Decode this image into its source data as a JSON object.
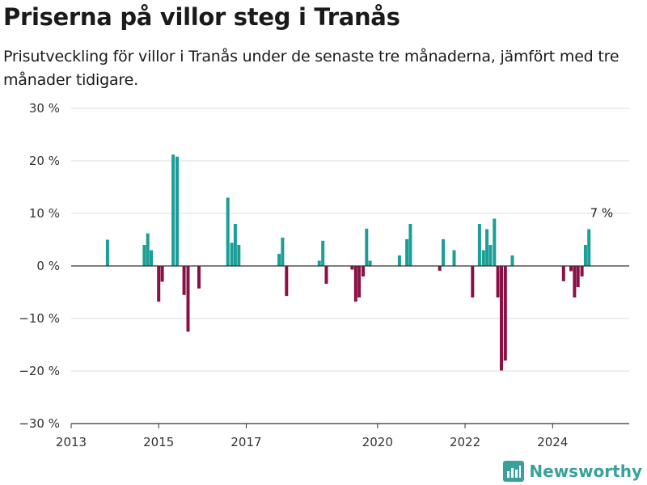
{
  "header": {
    "title": "Priserna på villor steg i Tranås",
    "subtitle": "Prisutveckling för villor i Tranås under de senaste tre månaderna, jämfört med tre månader tidigare."
  },
  "brand": {
    "name": "Newsworthy",
    "color": "#3aa19a"
  },
  "chart_data": {
    "type": "bar",
    "title": "Priserna på villor steg i Tranås",
    "subtitle": "Prisutveckling för villor i Tranås under de senaste tre månaderna, jämfört med tre månader tidigare.",
    "xlabel": "",
    "ylabel": "",
    "x_range": [
      2013.0,
      2025.75
    ],
    "ylim": [
      -30,
      30
    ],
    "y_ticks": [
      30,
      20,
      10,
      0,
      -10,
      -20,
      -30
    ],
    "y_tick_labels": [
      "30 %",
      "20 %",
      "10 %",
      "0 %",
      "−10 %",
      "−20 %",
      "−30 %"
    ],
    "x_ticks": [
      2013,
      2015,
      2017,
      2020,
      2022,
      2024
    ],
    "x_tick_labels": [
      "2013",
      "2015",
      "2017",
      "2020",
      "2022",
      "2024"
    ],
    "grid": "horizontal",
    "colors": {
      "positive": "#1a9e96",
      "negative": "#8b1045",
      "grid": "#dddddd",
      "axis": "#333333"
    },
    "annotation": {
      "text": "7 %",
      "x": 2025.12,
      "y": 7
    },
    "points": [
      {
        "x": 2013.83,
        "y": 5
      },
      {
        "x": 2014.67,
        "y": 4
      },
      {
        "x": 2014.75,
        "y": 6.2
      },
      {
        "x": 2014.83,
        "y": 3
      },
      {
        "x": 2015.0,
        "y": -6.8
      },
      {
        "x": 2015.08,
        "y": -3
      },
      {
        "x": 2015.33,
        "y": 21.2
      },
      {
        "x": 2015.42,
        "y": 20.8
      },
      {
        "x": 2015.58,
        "y": -5.5
      },
      {
        "x": 2015.67,
        "y": -12.5
      },
      {
        "x": 2015.92,
        "y": -4.3
      },
      {
        "x": 2016.58,
        "y": 13
      },
      {
        "x": 2016.67,
        "y": 4.4
      },
      {
        "x": 2016.75,
        "y": 8
      },
      {
        "x": 2016.83,
        "y": 4
      },
      {
        "x": 2017.75,
        "y": 2.3
      },
      {
        "x": 2017.83,
        "y": 5.4
      },
      {
        "x": 2017.92,
        "y": -5.7
      },
      {
        "x": 2018.67,
        "y": 1
      },
      {
        "x": 2018.75,
        "y": 4.8
      },
      {
        "x": 2018.83,
        "y": -3.4
      },
      {
        "x": 2019.42,
        "y": -0.7
      },
      {
        "x": 2019.5,
        "y": -6.8
      },
      {
        "x": 2019.58,
        "y": -6
      },
      {
        "x": 2019.67,
        "y": -2
      },
      {
        "x": 2019.75,
        "y": 7.1
      },
      {
        "x": 2019.83,
        "y": 1
      },
      {
        "x": 2020.5,
        "y": 2
      },
      {
        "x": 2020.67,
        "y": 5.1
      },
      {
        "x": 2020.75,
        "y": 8
      },
      {
        "x": 2021.42,
        "y": -0.9
      },
      {
        "x": 2021.5,
        "y": 5.1
      },
      {
        "x": 2021.75,
        "y": 3
      },
      {
        "x": 2022.17,
        "y": -6
      },
      {
        "x": 2022.33,
        "y": 8
      },
      {
        "x": 2022.42,
        "y": 3
      },
      {
        "x": 2022.5,
        "y": 7
      },
      {
        "x": 2022.58,
        "y": 4
      },
      {
        "x": 2022.67,
        "y": 9
      },
      {
        "x": 2022.75,
        "y": -6
      },
      {
        "x": 2022.83,
        "y": -19.9
      },
      {
        "x": 2022.92,
        "y": -18
      },
      {
        "x": 2023.08,
        "y": 2
      },
      {
        "x": 2024.25,
        "y": -2.9
      },
      {
        "x": 2024.42,
        "y": -1
      },
      {
        "x": 2024.5,
        "y": -6
      },
      {
        "x": 2024.58,
        "y": -4
      },
      {
        "x": 2024.67,
        "y": -2
      },
      {
        "x": 2024.75,
        "y": 4
      },
      {
        "x": 2024.83,
        "y": 7
      }
    ]
  }
}
